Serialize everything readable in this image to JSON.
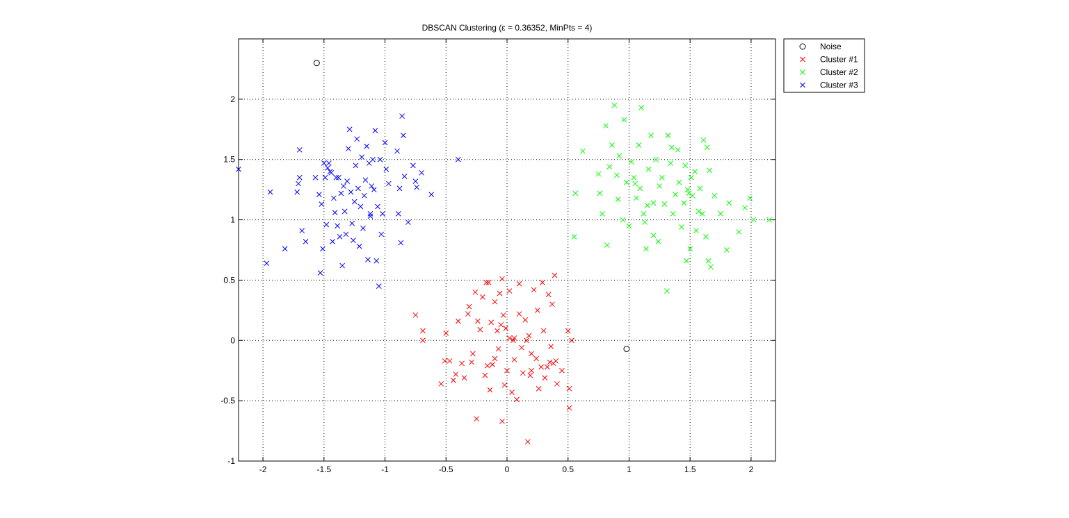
{
  "chart_data": {
    "type": "scatter",
    "title": "DBSCAN Clustering (ε = 0.36352, MinPts = 4)",
    "xlabel": "",
    "ylabel": "",
    "xlim": [
      -2.2,
      2.2
    ],
    "ylim": [
      -1,
      2.5
    ],
    "grid": true,
    "legend_position": "outside-top-right",
    "x_ticks": [
      -2,
      -1.5,
      -1,
      -0.5,
      0,
      0.5,
      1,
      1.5,
      2
    ],
    "x_tick_labels": [
      "-2",
      "-1.5",
      "-1",
      "-0.5",
      "0",
      "0.5",
      "1",
      "1.5",
      "2"
    ],
    "y_ticks": [
      -1,
      -0.5,
      0,
      0.5,
      1,
      1.5,
      2
    ],
    "y_tick_labels": [
      "-1",
      "-0.5",
      "0",
      "0.5",
      "1",
      "1.5",
      "2"
    ],
    "series": [
      {
        "name": "Noise",
        "marker": "circle",
        "color": "#000000",
        "points": [
          [
            -1.56,
            2.3
          ],
          [
            0.98,
            -0.07
          ]
        ]
      },
      {
        "name": "Cluster #1",
        "marker": "x",
        "color": "#ff0000",
        "points": [
          [
            -0.75,
            0.21
          ],
          [
            -0.69,
            0.08
          ],
          [
            -0.69,
            0.0
          ],
          [
            -0.54,
            -0.36
          ],
          [
            -0.5,
            0.06
          ],
          [
            -0.51,
            -0.17
          ],
          [
            -0.47,
            -0.17
          ],
          [
            -0.44,
            -0.33
          ],
          [
            -0.42,
            -0.28
          ],
          [
            -0.4,
            0.16
          ],
          [
            -0.37,
            -0.19
          ],
          [
            -0.35,
            -0.31
          ],
          [
            -0.32,
            0.22
          ],
          [
            -0.31,
            0.28
          ],
          [
            -0.29,
            -0.18
          ],
          [
            -0.28,
            -0.11
          ],
          [
            -0.26,
            0.4
          ],
          [
            -0.25,
            -0.65
          ],
          [
            -0.24,
            0.16
          ],
          [
            -0.22,
            0.09
          ],
          [
            -0.2,
            0.36
          ],
          [
            -0.18,
            -0.29
          ],
          [
            -0.17,
            0.48
          ],
          [
            -0.15,
            0.48
          ],
          [
            -0.14,
            -0.41
          ],
          [
            -0.13,
            0.15
          ],
          [
            -0.12,
            -0.2
          ],
          [
            -0.1,
            0.32
          ],
          [
            -0.1,
            -0.15
          ],
          [
            -0.08,
            0.08
          ],
          [
            -0.07,
            -0.07
          ],
          [
            -0.06,
            0.39
          ],
          [
            -0.05,
            0.13
          ],
          [
            -0.04,
            -0.67
          ],
          [
            -0.04,
            0.51
          ],
          [
            -0.03,
            0.21
          ],
          [
            -0.02,
            -0.37
          ],
          [
            -0.01,
            0.1
          ],
          [
            0.0,
            -0.25
          ],
          [
            0.02,
            0.41
          ],
          [
            0.02,
            0.02
          ],
          [
            0.04,
            -0.43
          ],
          [
            0.05,
            0.0
          ],
          [
            0.06,
            -0.16
          ],
          [
            0.08,
            -0.49
          ],
          [
            0.1,
            0.22
          ],
          [
            0.1,
            0.47
          ],
          [
            0.12,
            -0.06
          ],
          [
            0.13,
            -0.27
          ],
          [
            0.15,
            0.17
          ],
          [
            0.16,
            0.0
          ],
          [
            0.17,
            -0.84
          ],
          [
            0.18,
            0.04
          ],
          [
            0.19,
            -0.29
          ],
          [
            0.2,
            -0.11
          ],
          [
            0.22,
            0.42
          ],
          [
            0.24,
            -0.15
          ],
          [
            0.25,
            0.25
          ],
          [
            0.26,
            -0.4
          ],
          [
            0.28,
            -0.22
          ],
          [
            0.29,
            0.48
          ],
          [
            0.3,
            0.08
          ],
          [
            0.31,
            -0.31
          ],
          [
            0.33,
            -0.22
          ],
          [
            0.34,
            0.38
          ],
          [
            0.35,
            -0.18
          ],
          [
            0.36,
            -0.05
          ],
          [
            0.37,
            0.3
          ],
          [
            0.38,
            -0.19
          ],
          [
            0.39,
            0.54
          ],
          [
            0.4,
            -0.17
          ],
          [
            0.41,
            -0.36
          ],
          [
            0.45,
            -0.25
          ],
          [
            0.5,
            0.08
          ],
          [
            0.51,
            -0.4
          ],
          [
            0.51,
            -0.56
          ],
          [
            0.53,
            0.0
          ],
          [
            -0.16,
            -0.21
          ],
          [
            0.06,
            0.02
          ],
          [
            0.2,
            -0.25
          ]
        ]
      },
      {
        "name": "Cluster #2",
        "marker": "x",
        "color": "#00ff00",
        "points": [
          [
            0.55,
            0.86
          ],
          [
            0.56,
            1.22
          ],
          [
            0.62,
            1.57
          ],
          [
            0.75,
            1.38
          ],
          [
            0.76,
            1.22
          ],
          [
            0.78,
            1.05
          ],
          [
            0.81,
            1.78
          ],
          [
            0.82,
            0.79
          ],
          [
            0.84,
            1.44
          ],
          [
            0.86,
            1.62
          ],
          [
            0.88,
            1.95
          ],
          [
            0.9,
            1.37
          ],
          [
            0.91,
            1.17
          ],
          [
            0.92,
            1.53
          ],
          [
            0.95,
            1.0
          ],
          [
            0.96,
            1.83
          ],
          [
            0.98,
            1.31
          ],
          [
            1.0,
            0.95
          ],
          [
            1.02,
            1.48
          ],
          [
            1.04,
            1.35
          ],
          [
            1.06,
            1.18
          ],
          [
            1.08,
            1.62
          ],
          [
            1.09,
            1.26
          ],
          [
            1.1,
            1.93
          ],
          [
            1.12,
            1.05
          ],
          [
            1.13,
            0.98
          ],
          [
            1.14,
            0.76
          ],
          [
            1.15,
            1.12
          ],
          [
            1.16,
            1.42
          ],
          [
            1.18,
            1.7
          ],
          [
            1.2,
            0.87
          ],
          [
            1.22,
            1.5
          ],
          [
            1.24,
            0.82
          ],
          [
            1.25,
            1.28
          ],
          [
            1.27,
            1.35
          ],
          [
            1.29,
            1.13
          ],
          [
            1.31,
            0.41
          ],
          [
            1.32,
            1.7
          ],
          [
            1.34,
            1.47
          ],
          [
            1.36,
            1.05
          ],
          [
            1.38,
            1.21
          ],
          [
            1.4,
            1.58
          ],
          [
            1.41,
            1.31
          ],
          [
            1.43,
            0.94
          ],
          [
            1.45,
            1.14
          ],
          [
            1.46,
            1.45
          ],
          [
            1.47,
            0.66
          ],
          [
            1.49,
            1.22
          ],
          [
            1.5,
            0.76
          ],
          [
            1.51,
            1.35
          ],
          [
            1.52,
            1.2
          ],
          [
            1.54,
            1.4
          ],
          [
            1.55,
            0.91
          ],
          [
            1.57,
            1.07
          ],
          [
            1.58,
            1.26
          ],
          [
            1.6,
            1.05
          ],
          [
            1.61,
            1.66
          ],
          [
            1.63,
            0.86
          ],
          [
            1.64,
            1.6
          ],
          [
            1.65,
            0.66
          ],
          [
            1.66,
            1.41
          ],
          [
            1.67,
            0.61
          ],
          [
            1.7,
            1.2
          ],
          [
            1.75,
            1.05
          ],
          [
            1.8,
            0.75
          ],
          [
            1.82,
            1.14
          ],
          [
            1.9,
            0.9
          ],
          [
            1.95,
            1.1
          ],
          [
            1.99,
            1.18
          ],
          [
            2.02,
            1.0
          ],
          [
            2.15,
            1.0
          ],
          [
            1.2,
            1.14
          ],
          [
            1.05,
            1.3
          ],
          [
            1.35,
            1.6
          ],
          [
            1.48,
            1.25
          ]
        ]
      },
      {
        "name": "Cluster #3",
        "marker": "x",
        "color": "#0000ff",
        "points": [
          [
            -2.2,
            1.42
          ],
          [
            -1.97,
            0.64
          ],
          [
            -1.94,
            1.23
          ],
          [
            -1.82,
            0.76
          ],
          [
            -1.72,
            1.23
          ],
          [
            -1.71,
            1.3
          ],
          [
            -1.7,
            1.58
          ],
          [
            -1.7,
            1.35
          ],
          [
            -1.68,
            0.91
          ],
          [
            -1.65,
            0.82
          ],
          [
            -1.57,
            1.35
          ],
          [
            -1.54,
            1.21
          ],
          [
            -1.53,
            0.56
          ],
          [
            -1.52,
            1.13
          ],
          [
            -1.51,
            0.76
          ],
          [
            -1.5,
            1.47
          ],
          [
            -1.49,
            1.35
          ],
          [
            -1.48,
            0.96
          ],
          [
            -1.47,
            1.43
          ],
          [
            -1.46,
            1.47
          ],
          [
            -1.45,
            1.4
          ],
          [
            -1.44,
            1.39
          ],
          [
            -1.43,
            0.82
          ],
          [
            -1.42,
            1.18
          ],
          [
            -1.41,
            1.06
          ],
          [
            -1.4,
            1.35
          ],
          [
            -1.39,
            0.95
          ],
          [
            -1.38,
            1.35
          ],
          [
            -1.37,
            0.86
          ],
          [
            -1.36,
            1.22
          ],
          [
            -1.35,
            0.62
          ],
          [
            -1.34,
            1.28
          ],
          [
            -1.33,
            1.07
          ],
          [
            -1.32,
            0.88
          ],
          [
            -1.31,
            1.32
          ],
          [
            -1.3,
            1.59
          ],
          [
            -1.29,
            1.75
          ],
          [
            -1.28,
            1.23
          ],
          [
            -1.27,
            0.97
          ],
          [
            -1.26,
            0.83
          ],
          [
            -1.25,
            1.15
          ],
          [
            -1.24,
            1.45
          ],
          [
            -1.23,
            1.67
          ],
          [
            -1.22,
            1.26
          ],
          [
            -1.21,
            0.78
          ],
          [
            -1.2,
            1.11
          ],
          [
            -1.19,
            1.52
          ],
          [
            -1.18,
            0.93
          ],
          [
            -1.17,
            1.2
          ],
          [
            -1.16,
            1.33
          ],
          [
            -1.15,
            1.61
          ],
          [
            -1.14,
            0.67
          ],
          [
            -1.13,
            1.47
          ],
          [
            -1.12,
            1.03
          ],
          [
            -1.11,
            1.28
          ],
          [
            -1.1,
            1.5
          ],
          [
            -1.09,
            1.25
          ],
          [
            -1.08,
            1.74
          ],
          [
            -1.07,
            0.66
          ],
          [
            -1.06,
            1.11
          ],
          [
            -1.05,
            0.45
          ],
          [
            -1.04,
            1.5
          ],
          [
            -1.03,
            0.88
          ],
          [
            -1.02,
            1.05
          ],
          [
            -1.0,
            1.64
          ],
          [
            -0.99,
            1.42
          ],
          [
            -0.97,
            1.3
          ],
          [
            -0.9,
            1.57
          ],
          [
            -0.89,
            1.05
          ],
          [
            -0.88,
            1.26
          ],
          [
            -0.87,
            0.81
          ],
          [
            -0.86,
            1.86
          ],
          [
            -0.85,
            1.7
          ],
          [
            -0.84,
            1.36
          ],
          [
            -0.81,
            0.98
          ],
          [
            -0.77,
            1.45
          ],
          [
            -0.75,
            1.32
          ],
          [
            -0.74,
            1.27
          ],
          [
            -0.7,
            1.39
          ],
          [
            -0.62,
            1.21
          ],
          [
            -0.4,
            1.5
          ],
          [
            -1.12,
            1.05
          ]
        ]
      }
    ]
  }
}
